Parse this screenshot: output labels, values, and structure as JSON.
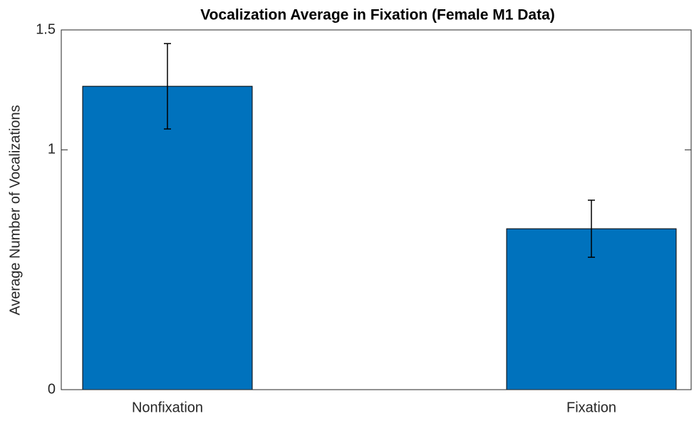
{
  "chart_data": {
    "type": "bar",
    "title": "Vocalization Average in Fixation (Female M1 Data)",
    "ylabel": "Average Number of Vocalizations",
    "categories": [
      "Nonfixation",
      "Fixation"
    ],
    "values": [
      1.265,
      0.671
    ],
    "errors": [
      0.178,
      0.119
    ],
    "color": "#0072bd",
    "ylim": [
      0,
      1.5
    ],
    "yticks": [
      0,
      1,
      1.5
    ],
    "grid": false
  }
}
